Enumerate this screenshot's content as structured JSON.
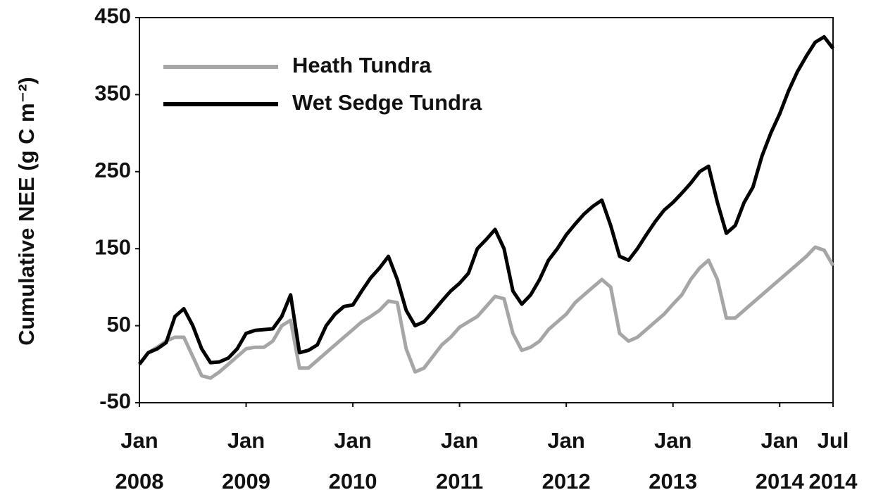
{
  "chart_data": {
    "type": "line",
    "ylabel": "Cumulative NEE (g C m⁻²)",
    "x": [
      "2008-01",
      "2008-02",
      "2008-03",
      "2008-04",
      "2008-05",
      "2008-06",
      "2008-07",
      "2008-08",
      "2008-09",
      "2008-10",
      "2008-11",
      "2008-12",
      "2009-01",
      "2009-02",
      "2009-03",
      "2009-04",
      "2009-05",
      "2009-06",
      "2009-07",
      "2009-08",
      "2009-09",
      "2009-10",
      "2009-11",
      "2009-12",
      "2010-01",
      "2010-02",
      "2010-03",
      "2010-04",
      "2010-05",
      "2010-06",
      "2010-07",
      "2010-08",
      "2010-09",
      "2010-10",
      "2010-11",
      "2010-12",
      "2011-01",
      "2011-02",
      "2011-03",
      "2011-04",
      "2011-05",
      "2011-06",
      "2011-07",
      "2011-08",
      "2011-09",
      "2011-10",
      "2011-11",
      "2011-12",
      "2012-01",
      "2012-02",
      "2012-03",
      "2012-04",
      "2012-05",
      "2012-06",
      "2012-07",
      "2012-08",
      "2012-09",
      "2012-10",
      "2012-11",
      "2012-12",
      "2013-01",
      "2013-02",
      "2013-03",
      "2013-04",
      "2013-05",
      "2013-06",
      "2013-07",
      "2013-08",
      "2013-09",
      "2013-10",
      "2013-11",
      "2013-12",
      "2014-01",
      "2014-02",
      "2014-03",
      "2014-04",
      "2014-05",
      "2014-06",
      "2014-07"
    ],
    "series": [
      {
        "name": "Heath Tundra",
        "color": "#a6a6a6",
        "values": [
          0,
          15,
          22,
          30,
          35,
          35,
          10,
          -15,
          -18,
          -10,
          0,
          10,
          20,
          22,
          22,
          30,
          50,
          57,
          -5,
          -5,
          5,
          15,
          25,
          35,
          45,
          55,
          62,
          70,
          82,
          80,
          20,
          -10,
          -5,
          10,
          25,
          35,
          48,
          55,
          62,
          75,
          88,
          85,
          40,
          18,
          22,
          30,
          45,
          55,
          65,
          80,
          90,
          100,
          110,
          100,
          40,
          30,
          35,
          45,
          55,
          65,
          78,
          90,
          110,
          125,
          135,
          110,
          60,
          60,
          70,
          80,
          90,
          100,
          110,
          120,
          130,
          140,
          152,
          148,
          128
        ]
      },
      {
        "name": "Wet Sedge Tundra",
        "color": "#000000",
        "values": [
          0,
          15,
          20,
          28,
          62,
          72,
          50,
          20,
          2,
          3,
          8,
          20,
          40,
          44,
          45,
          46,
          62,
          90,
          15,
          18,
          25,
          50,
          65,
          75,
          77,
          95,
          112,
          125,
          140,
          110,
          70,
          50,
          55,
          68,
          82,
          95,
          105,
          118,
          150,
          162,
          175,
          150,
          95,
          78,
          90,
          110,
          135,
          150,
          168,
          182,
          195,
          205,
          213,
          180,
          140,
          135,
          150,
          168,
          185,
          200,
          210,
          222,
          235,
          250,
          257,
          210,
          170,
          180,
          210,
          230,
          270,
          300,
          325,
          355,
          380,
          400,
          418,
          425,
          410
        ]
      }
    ],
    "xlim": [
      "2008-01",
      "2014-07"
    ],
    "xticks": [
      {
        "value": "2008-01",
        "label": "Jan 2008"
      },
      {
        "value": "2009-01",
        "label": "Jan 2009"
      },
      {
        "value": "2010-01",
        "label": "Jan 2010"
      },
      {
        "value": "2011-01",
        "label": "Jan 2011"
      },
      {
        "value": "2012-01",
        "label": "Jan 2012"
      },
      {
        "value": "2013-01",
        "label": "Jan 2013"
      },
      {
        "value": "2014-01",
        "label": "Jan 2014"
      },
      {
        "value": "2014-07",
        "label": "Jul 2014"
      }
    ],
    "ylim": [
      -50,
      450
    ],
    "yticks": [
      -50,
      50,
      150,
      250,
      350,
      450
    ],
    "grid": false,
    "legend": "upper left"
  }
}
